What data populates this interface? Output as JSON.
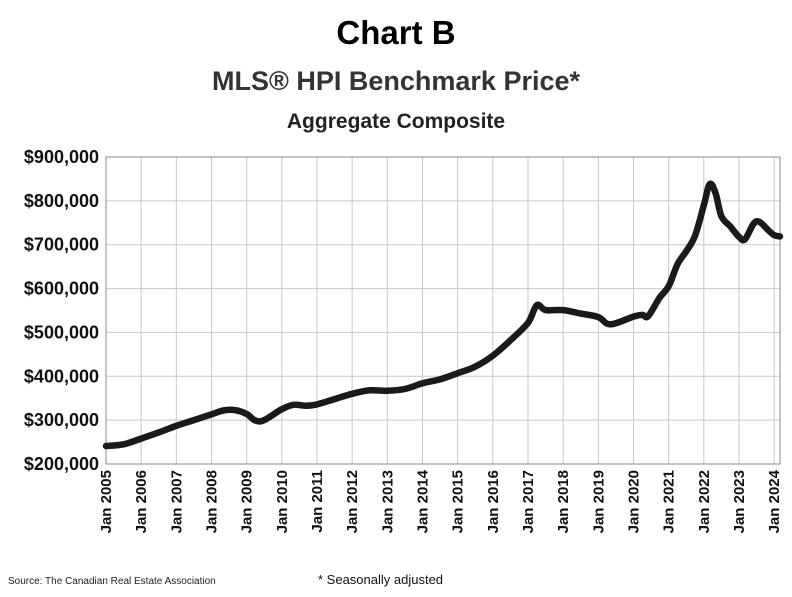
{
  "header": {
    "title": "Chart B",
    "subtitle": "MLS® HPI Benchmark Price*",
    "subtitle2": "Aggregate Composite"
  },
  "footer": {
    "source": "Source: The Canadian Real Estate Association",
    "note": "* Seasonally adjusted"
  },
  "chart_data": {
    "type": "line",
    "title": "Chart B",
    "subtitle": "MLS® HPI Benchmark Price*",
    "xlabel": "",
    "ylabel": "",
    "ylim": [
      200000,
      900000
    ],
    "xlim": [
      "2005-01",
      "2024-03"
    ],
    "grid": true,
    "y_ticks": [
      "$200,000",
      "$300,000",
      "$400,000",
      "$500,000",
      "$600,000",
      "$700,000",
      "$800,000",
      "$900,000"
    ],
    "x_ticks": [
      "Jan 2005",
      "Jan 2006",
      "Jan 2007",
      "Jan 2008",
      "Jan 2009",
      "Jan 2010",
      "Jan 2011",
      "Jan 2012",
      "Jan 2013",
      "Jan 2014",
      "Jan 2015",
      "Jan 2016",
      "Jan 2017",
      "Jan 2018",
      "Jan 2019",
      "Jan 2020",
      "Jan 2021",
      "Jan 2022",
      "Jan 2023",
      "Jan 2024"
    ],
    "line_color": "#1a1a1a",
    "series": [
      {
        "name": "",
        "points": [
          [
            "2005-01",
            241000
          ],
          [
            "2005-07",
            245000
          ],
          [
            "2006-01",
            258000
          ],
          [
            "2006-07",
            272000
          ],
          [
            "2007-01",
            287000
          ],
          [
            "2007-07",
            300000
          ],
          [
            "2008-01",
            313000
          ],
          [
            "2008-05",
            322000
          ],
          [
            "2008-09",
            323000
          ],
          [
            "2009-01",
            314000
          ],
          [
            "2009-04",
            299000
          ],
          [
            "2009-07",
            300000
          ],
          [
            "2010-01",
            325000
          ],
          [
            "2010-05",
            335000
          ],
          [
            "2010-09",
            333000
          ],
          [
            "2011-01",
            336000
          ],
          [
            "2011-07",
            348000
          ],
          [
            "2012-01",
            360000
          ],
          [
            "2012-07",
            368000
          ],
          [
            "2013-01",
            367000
          ],
          [
            "2013-07",
            371000
          ],
          [
            "2014-01",
            384000
          ],
          [
            "2014-07",
            393000
          ],
          [
            "2015-01",
            407000
          ],
          [
            "2015-07",
            422000
          ],
          [
            "2016-01",
            447000
          ],
          [
            "2016-07",
            482000
          ],
          [
            "2017-01",
            522000
          ],
          [
            "2017-04",
            562000
          ],
          [
            "2017-07",
            551000
          ],
          [
            "2018-01",
            551000
          ],
          [
            "2018-07",
            543000
          ],
          [
            "2019-01",
            535000
          ],
          [
            "2019-04",
            520000
          ],
          [
            "2019-07",
            521000
          ],
          [
            "2020-01",
            536000
          ],
          [
            "2020-04",
            540000
          ],
          [
            "2020-06",
            537000
          ],
          [
            "2020-10",
            580000
          ],
          [
            "2021-01",
            605000
          ],
          [
            "2021-04",
            655000
          ],
          [
            "2021-07",
            685000
          ],
          [
            "2021-10",
            720000
          ],
          [
            "2022-01",
            790000
          ],
          [
            "2022-03",
            838000
          ],
          [
            "2022-05",
            818000
          ],
          [
            "2022-07",
            765000
          ],
          [
            "2022-10",
            742000
          ],
          [
            "2023-01",
            718000
          ],
          [
            "2023-03",
            712000
          ],
          [
            "2023-06",
            748000
          ],
          [
            "2023-08",
            752000
          ],
          [
            "2023-11",
            733000
          ],
          [
            "2024-01",
            722000
          ],
          [
            "2024-03",
            719000
          ]
        ]
      }
    ]
  }
}
